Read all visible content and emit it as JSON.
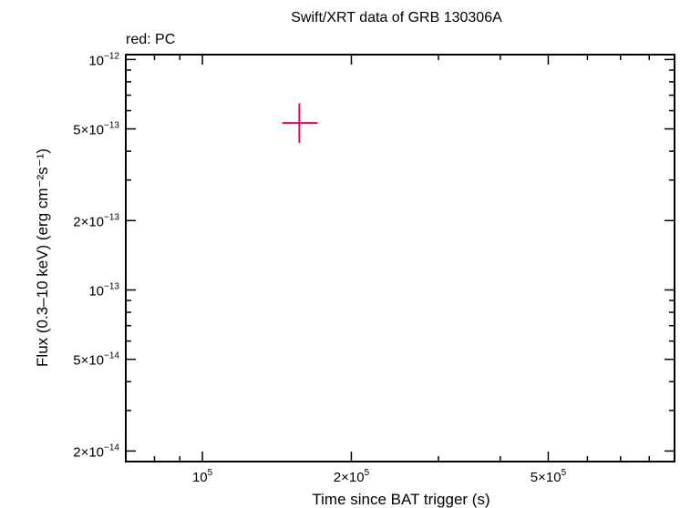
{
  "chart_data": {
    "type": "scatter",
    "title": "Swift/XRT data of GRB 130306A",
    "legend_note": "red: PC",
    "xlabel": "Time since BAT trigger (s)",
    "ylabel": "Flux (0.3–10 keV) (erg cm⁻²s⁻¹)",
    "xscale": "log",
    "yscale": "log",
    "xlim": [
      70000,
      900000
    ],
    "ylim": [
      1.8e-14,
      1.05e-12
    ],
    "x_ticks": [
      {
        "value": 100000,
        "label": "10",
        "exp": "5"
      },
      {
        "value": 200000,
        "label": "2×10",
        "exp": "5"
      },
      {
        "value": 500000,
        "label": "5×10",
        "exp": "5"
      }
    ],
    "y_ticks": [
      {
        "value": 1e-12,
        "label": "10",
        "exp": "−12"
      },
      {
        "value": 5e-13,
        "label": "5×10",
        "exp": "−13"
      },
      {
        "value": 2e-13,
        "label": "2×10",
        "exp": "−13"
      },
      {
        "value": 1e-13,
        "label": "10",
        "exp": "−13"
      },
      {
        "value": 5e-14,
        "label": "5×10",
        "exp": "−14"
      },
      {
        "value": 2e-14,
        "label": "2×10",
        "exp": "−14"
      }
    ],
    "grid": false,
    "series": [
      {
        "color": "#e6005c",
        "points": [
          {
            "x": 157000,
            "y": 5.3e-13,
            "xerr": [
              145000,
              171000
            ],
            "yerr": [
              4.35e-13,
              6.45e-13
            ]
          }
        ]
      }
    ]
  }
}
